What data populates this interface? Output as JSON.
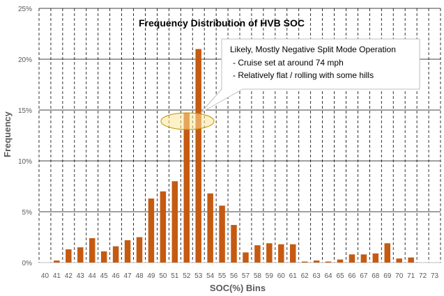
{
  "chart_data": {
    "type": "bar",
    "title": "Frequency Distribution of HVB SOC",
    "xlabel": "SOC(%) Bins",
    "ylabel": "Frequency",
    "categories": [
      "40",
      "41",
      "42",
      "43",
      "44",
      "45",
      "46",
      "47",
      "48",
      "49",
      "50",
      "51",
      "52",
      "53",
      "54",
      "55",
      "56",
      "57",
      "58",
      "59",
      "60",
      "61",
      "62",
      "63",
      "64",
      "65",
      "66",
      "67",
      "68",
      "69",
      "70",
      "71",
      "72",
      "73"
    ],
    "values": [
      0,
      0.2,
      1.3,
      1.5,
      2.4,
      1.1,
      1.6,
      2.2,
      2.5,
      6.3,
      7.0,
      8.0,
      14.7,
      21.0,
      6.8,
      5.6,
      3.7,
      1.0,
      1.7,
      1.9,
      1.8,
      1.8,
      0.1,
      0.2,
      0.1,
      0.3,
      0.8,
      0.8,
      0.9,
      1.9,
      0.4,
      0.5,
      0,
      0
    ],
    "ylim": [
      0,
      25
    ],
    "yticks": [
      "0%",
      "5%",
      "10%",
      "15%",
      "20%",
      "25%"
    ],
    "grid": "horizontal solid, vertical dashed",
    "annotation": {
      "lines": [
        "Likely, Mostly Negative Split Mode Operation",
        "-  Cruise set at around 74 mph",
        "-  Relatively flat / rolling with some hills"
      ],
      "highlight_category": "52"
    }
  },
  "colors": {
    "bar": "#C55A11",
    "grid": "#000000",
    "highlight_fill": "#FFE699",
    "highlight_stroke": "#BF9000",
    "callout_fill": "#FFFFFF",
    "callout_stroke": "#BFBFBF"
  }
}
